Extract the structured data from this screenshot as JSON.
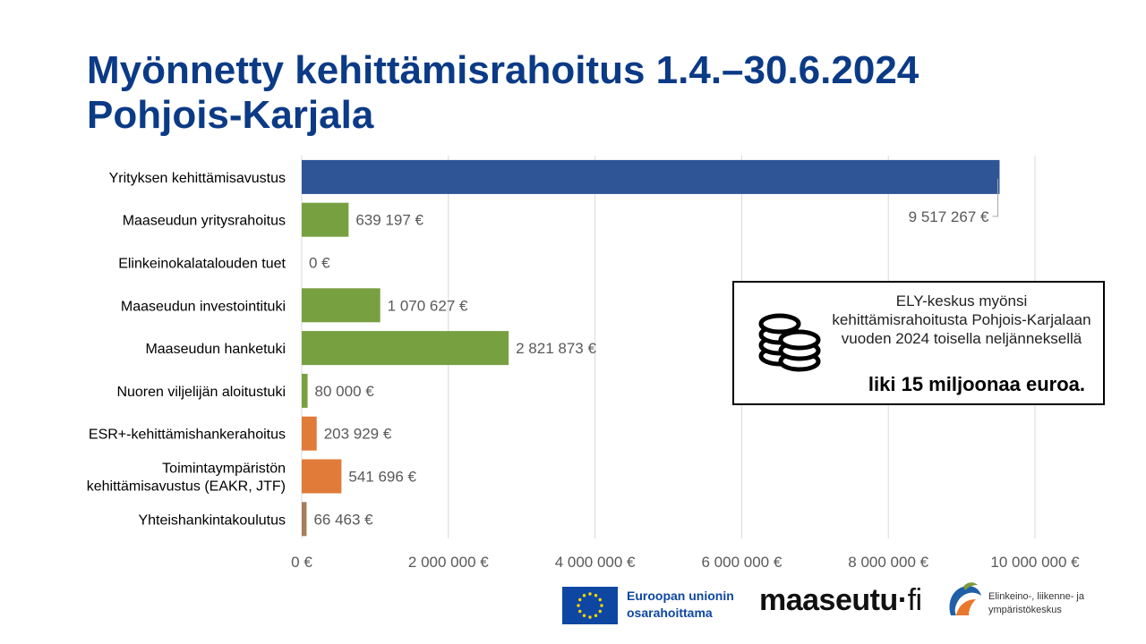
{
  "title_line1": "Myönnetty kehittämisrahoitus 1.4.–30.6.2024",
  "title_line2": "Pohjois-Karjala",
  "info": {
    "text": "ELY-keskus myönsi kehittämisrahoitusta Pohjois-Karjalaan vuoden 2024 toisella neljänneksellä",
    "strong": "liki 15 miljoonaa euroa.",
    "icon": "coins-icon"
  },
  "logos": {
    "eu_line1": "Euroopan unionin",
    "eu_line2": "osarahoittama",
    "maaseutu_main": "maaseutu",
    "maaseutu_dot": "·",
    "maaseutu_fi": "fi",
    "ely_line1": "Elinkeino-, liikenne- ja",
    "ely_line2": "ympäristökeskus"
  },
  "chart_data": {
    "type": "bar",
    "orientation": "horizontal",
    "categories": [
      "Yrityksen kehittämisavustus",
      "Maaseudun yritysrahoitus",
      "Elinkeinokalatalouden tuet",
      "Maaseudun investointituki",
      "Maaseudun hanketuki",
      "Nuoren viljelijän aloitustuki",
      "ESR+-kehittämishankerahoitus",
      "Toimintaympäristön kehittämisavustus (EAKR, JTF)",
      "Yhteishankintakoulutus"
    ],
    "category_lines": [
      [
        "Yrityksen kehittämisavustus"
      ],
      [
        "Maaseudun yritysrahoitus"
      ],
      [
        "Elinkeinokalatalouden tuet"
      ],
      [
        "Maaseudun investointituki"
      ],
      [
        "Maaseudun hanketuki"
      ],
      [
        "Nuoren viljelijän aloitustuki"
      ],
      [
        "ESR+-kehittämishankerahoitus"
      ],
      [
        "Toimintaympäristön",
        "kehittämisavustus (EAKR, JTF)"
      ],
      [
        "Yhteishankintakoulutus"
      ]
    ],
    "values": [
      9517267,
      639197,
      0,
      1070627,
      2821873,
      80000,
      203929,
      541696,
      66463
    ],
    "value_labels": [
      "9 517 267 €",
      "639 197 €",
      "0 €",
      "1 070 627 €",
      "2 821 873 €",
      "80 000 €",
      "203 929 €",
      "541 696 €",
      "66 463 €"
    ],
    "colors": [
      "#2f5597",
      "#77a041",
      "#77a041",
      "#77a041",
      "#77a041",
      "#77a041",
      "#e07b39",
      "#e07b39",
      "#a87d5a"
    ],
    "xlim": [
      0,
      10000000
    ],
    "ticks": [
      0,
      2000000,
      4000000,
      6000000,
      8000000,
      10000000
    ],
    "tick_labels": [
      "0 €",
      "2 000 000 €",
      "4 000 000 €",
      "6 000 000 €",
      "8 000 000 €",
      "10 000 000 €"
    ],
    "grid": true,
    "legend": "none"
  }
}
